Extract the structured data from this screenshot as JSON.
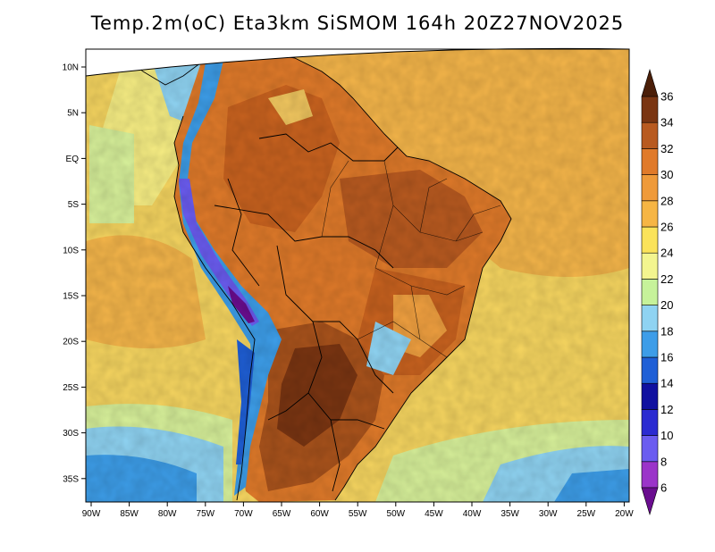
{
  "title": "Temp.2m(oC) Eta3km SiSMOM 164h 20Z27NOV2025",
  "map": {
    "variable": "2 m air temperature",
    "units": "oC",
    "region": "South America",
    "latitude_labels": [
      "10N",
      "5N",
      "EQ",
      "5S",
      "10S",
      "15S",
      "20S",
      "25S",
      "30S",
      "35S"
    ],
    "longitude_labels": [
      "90W",
      "85W",
      "80W",
      "75W",
      "70W",
      "65W",
      "60W",
      "55W",
      "50W",
      "45W",
      "40W",
      "35W",
      "30W",
      "25W",
      "20W"
    ]
  },
  "colorbar": {
    "levels": [
      "6",
      "8",
      "10",
      "12",
      "14",
      "16",
      "18",
      "20",
      "22",
      "24",
      "26",
      "28",
      "30",
      "32",
      "34",
      "36"
    ],
    "colors": [
      "#6a0d8f",
      "#9b34c9",
      "#6b5cf0",
      "#2b2bd1",
      "#1010a0",
      "#1f5fd6",
      "#3d9de8",
      "#8fd3f2",
      "#c6f29a",
      "#f3f58f",
      "#fbe35a",
      "#f6b544",
      "#ef9a3a",
      "#e07a2a",
      "#b85a20",
      "#7a3512",
      "#4a1e08"
    ]
  }
}
